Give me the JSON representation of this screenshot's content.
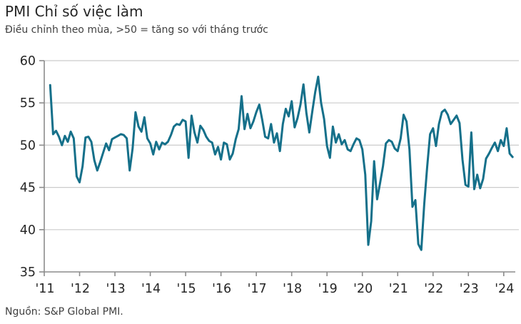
{
  "header": {
    "title": "PMI Chỉ số việc làm",
    "subtitle": "Điều chỉnh theo mùa, >50 = tăng so với tháng trước"
  },
  "footer": {
    "source": "Nguồn: S&P Global PMI."
  },
  "colors": {
    "line": "#15708a",
    "grid": "#cccccc",
    "axis": "#8c8c8c",
    "tick_text": "#262626"
  },
  "chart_data": {
    "type": "line",
    "title": "PMI Chỉ số việc làm",
    "subtitle": "Điều chỉnh theo mùa, >50 = tăng so với tháng trước",
    "source": "Nguồn: S&P Global PMI.",
    "grid": "horizontal",
    "legend": "none",
    "ylim": [
      35,
      60
    ],
    "yticks": [
      35,
      40,
      45,
      50,
      55,
      60
    ],
    "x_tick_years": [
      2011,
      2012,
      2013,
      2014,
      2015,
      2016,
      2017,
      2018,
      2019,
      2020,
      2021,
      2022,
      2023,
      2024
    ],
    "x_tick_labels": [
      "'11",
      "'12",
      "'13",
      "'14",
      "'15",
      "'16",
      "'17",
      "'18",
      "'19",
      "'20",
      "'21",
      "'22",
      "'23",
      "'24"
    ],
    "series": [
      {
        "name": "PMI Chỉ số việc làm",
        "frequency": "monthly",
        "start": "2011-03",
        "end": "2024-04",
        "values": [
          57.1,
          51.3,
          51.7,
          51.0,
          50.0,
          51.1,
          50.4,
          51.6,
          50.8,
          46.3,
          45.6,
          47.5,
          50.9,
          51.0,
          50.4,
          48.2,
          47.0,
          48.0,
          49.1,
          50.2,
          49.4,
          50.7,
          50.9,
          51.1,
          51.3,
          51.2,
          50.8,
          47.0,
          49.6,
          53.9,
          52.2,
          51.6,
          53.3,
          50.8,
          50.2,
          48.9,
          50.4,
          49.5,
          50.3,
          50.1,
          50.4,
          51.2,
          52.2,
          52.5,
          52.4,
          53.0,
          52.8,
          48.5,
          53.5,
          51.5,
          50.3,
          52.3,
          51.8,
          51.0,
          50.5,
          50.3,
          48.9,
          49.8,
          48.3,
          50.3,
          50.1,
          48.3,
          49.0,
          50.7,
          51.9,
          55.8,
          51.9,
          53.7,
          52.0,
          52.8,
          53.9,
          54.8,
          53.0,
          51.0,
          50.8,
          52.5,
          50.3,
          51.4,
          49.3,
          52.5,
          54.3,
          53.4,
          55.2,
          52.1,
          53.2,
          54.8,
          57.2,
          53.8,
          51.5,
          54.0,
          56.3,
          58.1,
          55.0,
          53.1,
          49.9,
          48.5,
          52.2,
          50.3,
          51.3,
          50.1,
          50.6,
          49.5,
          49.3,
          50.1,
          50.8,
          50.6,
          49.5,
          46.5,
          38.2,
          41.0,
          48.1,
          43.6,
          45.5,
          47.5,
          50.2,
          50.6,
          50.4,
          49.6,
          49.3,
          50.8,
          53.6,
          52.8,
          49.5,
          42.7,
          43.5,
          38.3,
          37.6,
          43.0,
          47.4,
          51.3,
          52.0,
          49.9,
          52.5,
          53.9,
          54.2,
          53.6,
          52.5,
          53.0,
          53.5,
          52.6,
          48.3,
          45.3,
          45.1,
          51.5,
          44.8,
          46.5,
          44.9,
          46.0,
          48.4,
          49.0,
          49.7,
          50.3,
          49.3,
          50.6,
          49.9,
          52.0,
          49.0,
          48.6
        ]
      }
    ]
  }
}
